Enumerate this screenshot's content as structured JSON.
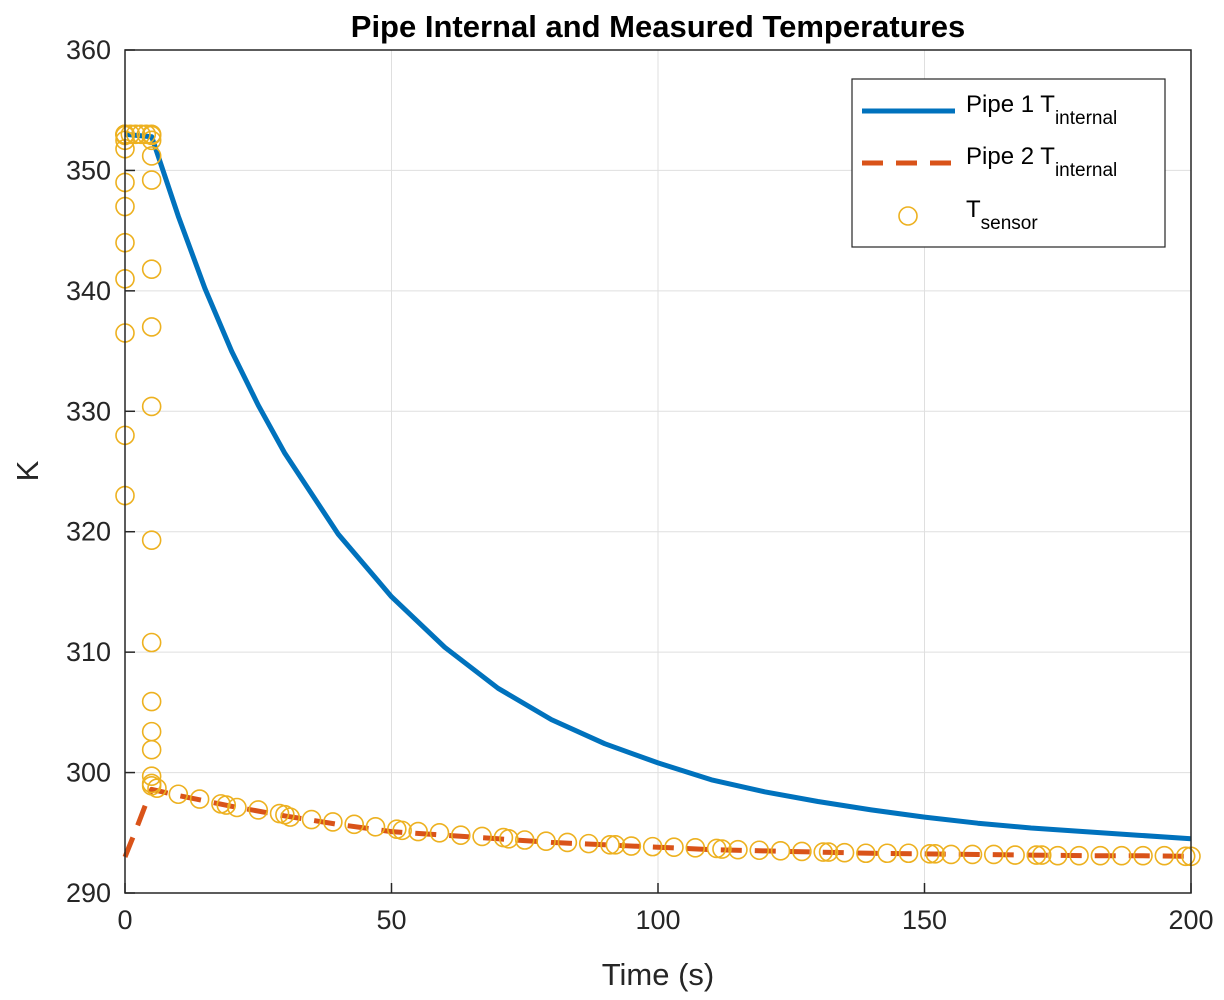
{
  "chart_data": {
    "type": "line",
    "title": "Pipe Internal and Measured Temperatures",
    "xlabel": "Time (s)",
    "ylabel": "K",
    "xlim": [
      0,
      200
    ],
    "ylim": [
      290,
      360
    ],
    "xticks": [
      0,
      50,
      100,
      150,
      200
    ],
    "yticks": [
      290,
      300,
      310,
      320,
      330,
      340,
      350,
      360
    ],
    "grid": true,
    "legend_position": "top-right",
    "series": [
      {
        "name": "Pipe 1 T",
        "name_sub": "internal",
        "style": "solid",
        "color": "#0072BD",
        "x": [
          0,
          5,
          10,
          15,
          20,
          25,
          30,
          40,
          50,
          60,
          70,
          80,
          90,
          100,
          110,
          120,
          130,
          140,
          150,
          160,
          170,
          180,
          190,
          200
        ],
        "y": [
          353,
          352.8,
          346.2,
          340.2,
          335.0,
          330.5,
          326.5,
          319.8,
          314.6,
          310.4,
          307.0,
          304.4,
          302.4,
          300.8,
          299.4,
          298.4,
          297.6,
          296.9,
          296.3,
          295.8,
          295.4,
          295.1,
          294.8,
          294.5
        ]
      },
      {
        "name": "Pipe 2 T",
        "name_sub": "internal",
        "style": "dashed",
        "color": "#D95319",
        "x": [
          0,
          2,
          4,
          5,
          6,
          10,
          20,
          30,
          40,
          50,
          60,
          70,
          80,
          90,
          100,
          110,
          120,
          130,
          140,
          150,
          160,
          170,
          180,
          190,
          200
        ],
        "y": [
          293,
          295.2,
          297.5,
          298.6,
          298.5,
          298.1,
          297.2,
          296.4,
          295.7,
          295.1,
          294.8,
          294.5,
          294.2,
          294.0,
          293.8,
          293.6,
          293.5,
          293.4,
          293.3,
          293.25,
          293.2,
          293.15,
          293.1,
          293.1,
          293.05
        ]
      },
      {
        "name": "T",
        "name_sub": "sensor",
        "style": "markers",
        "marker": "circle",
        "color": "#EDB120",
        "x": [
          0,
          0,
          0,
          0,
          0,
          0,
          0,
          0,
          0,
          0,
          0,
          0,
          0,
          1,
          2,
          3,
          4,
          5,
          5,
          5,
          5,
          5,
          5,
          5,
          5,
          5,
          5,
          5,
          5,
          5,
          5,
          5,
          5,
          6,
          10,
          14,
          18,
          19,
          21,
          25,
          29,
          30,
          31,
          35,
          39,
          43,
          47,
          51,
          52,
          55,
          59,
          63,
          67,
          71,
          72,
          75,
          79,
          83,
          87,
          91,
          92,
          95,
          99,
          103,
          107,
          111,
          112,
          115,
          119,
          123,
          127,
          131,
          132,
          135,
          139,
          143,
          147,
          151,
          152,
          155,
          159,
          163,
          167,
          171,
          172,
          175,
          179,
          183,
          187,
          191,
          195,
          199,
          200
        ],
        "y": [
          323,
          328,
          336.5,
          341,
          344,
          347,
          349,
          351.8,
          352.5,
          352.9,
          353,
          353,
          353,
          353,
          353,
          353,
          353,
          353,
          352.9,
          352.5,
          351.2,
          349.2,
          341.8,
          337,
          330.4,
          319.3,
          310.8,
          305.9,
          303.4,
          301.9,
          299.7,
          299.1,
          298.9,
          298.7,
          298.2,
          297.8,
          297.4,
          297.3,
          297.1,
          296.9,
          296.6,
          296.5,
          296.3,
          296.1,
          295.9,
          295.7,
          295.5,
          295.3,
          295.2,
          295.1,
          295.0,
          294.8,
          294.7,
          294.6,
          294.5,
          294.4,
          294.3,
          294.2,
          294.1,
          294.0,
          294.0,
          293.9,
          293.85,
          293.8,
          293.75,
          293.7,
          293.65,
          293.6,
          293.55,
          293.5,
          293.45,
          293.4,
          293.4,
          293.35,
          293.3,
          293.3,
          293.3,
          293.25,
          293.25,
          293.2,
          293.2,
          293.2,
          293.15,
          293.15,
          293.15,
          293.1,
          293.1,
          293.1,
          293.1,
          293.1,
          293.1,
          293.05,
          293.05
        ]
      }
    ]
  }
}
